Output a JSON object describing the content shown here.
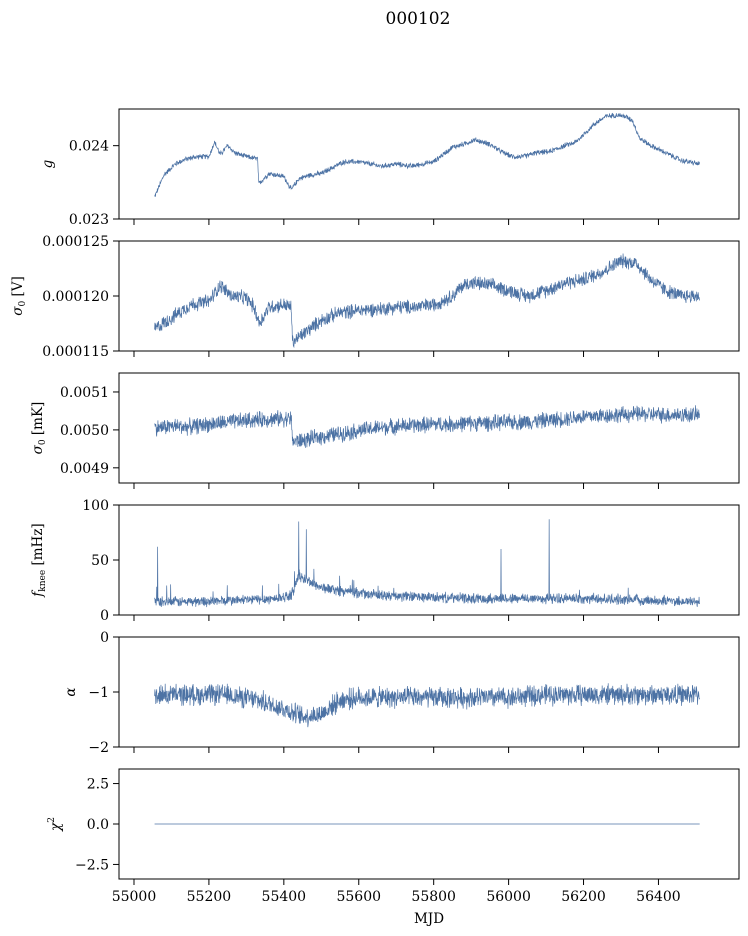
{
  "figure": {
    "title": "000102",
    "xlabel": "MJD",
    "series_color": "#4c72a4"
  },
  "chart_data": [
    {
      "type": "line",
      "ylabel_main": "g",
      "ylabel_sub": "",
      "ylabel_unit": "",
      "xlim": [
        54960,
        56615
      ],
      "ylim": [
        0.023,
        0.0245
      ],
      "xticks": [
        55000,
        55200,
        55400,
        55600,
        55800,
        56000,
        56200,
        56400
      ],
      "xtick_labels": [],
      "yticks": [
        0.023,
        0.024
      ],
      "ytick_labels": [
        "0.023",
        "0.024"
      ],
      "noise": 3e-05,
      "x": [
        55055,
        55080,
        55110,
        55140,
        55170,
        55200,
        55215,
        55230,
        55250,
        55270,
        55300,
        55330,
        55333,
        55360,
        55400,
        55420,
        55440,
        55470,
        55500,
        55530,
        55560,
        55600,
        55630,
        55660,
        55700,
        55740,
        55770,
        55800,
        55830,
        55850,
        55880,
        55910,
        55950,
        55980,
        56010,
        56040,
        56070,
        56110,
        56150,
        56180,
        56200,
        56230,
        56260,
        56290,
        56310,
        56330,
        56350,
        56380,
        56420,
        56460,
        56510
      ],
      "y": [
        0.0233,
        0.0236,
        0.02375,
        0.02382,
        0.02385,
        0.02385,
        0.02405,
        0.02388,
        0.024,
        0.0239,
        0.02385,
        0.02382,
        0.02348,
        0.02362,
        0.02358,
        0.0234,
        0.02355,
        0.0236,
        0.02362,
        0.0237,
        0.02378,
        0.02378,
        0.02375,
        0.02372,
        0.02375,
        0.02372,
        0.02375,
        0.02378,
        0.0239,
        0.02398,
        0.02402,
        0.02408,
        0.02402,
        0.02392,
        0.02385,
        0.02385,
        0.0239,
        0.02392,
        0.024,
        0.02405,
        0.02415,
        0.0243,
        0.0244,
        0.02442,
        0.0244,
        0.02435,
        0.0241,
        0.024,
        0.0239,
        0.0238,
        0.02375
      ]
    },
    {
      "type": "line",
      "ylabel_main": "σ",
      "ylabel_sub": "0",
      "ylabel_unit": " [V]",
      "xlim": [
        54960,
        56615
      ],
      "ylim": [
        0.000115,
        0.000125
      ],
      "xticks": [
        55000,
        55200,
        55400,
        55600,
        55800,
        56000,
        56200,
        56400
      ],
      "xtick_labels": [],
      "yticks": [
        0.000115,
        0.00012,
        0.000125
      ],
      "ytick_labels": [
        "0.000115",
        "0.000120",
        "0.000125"
      ],
      "noise": 5.5e-07,
      "x": [
        55055,
        55100,
        55150,
        55200,
        55230,
        55260,
        55300,
        55320,
        55335,
        55360,
        55400,
        55420,
        55423,
        55450,
        55500,
        55550,
        55600,
        55650,
        55700,
        55750,
        55800,
        55850,
        55880,
        55900,
        55950,
        56000,
        56050,
        56100,
        56150,
        56200,
        56250,
        56300,
        56340,
        56380,
        56420,
        56460,
        56510
      ],
      "y": [
        0.000117,
        0.000118,
        0.0001192,
        0.0001195,
        0.000121,
        0.00012,
        0.0001198,
        0.000119,
        0.0001175,
        0.000119,
        0.0001192,
        0.000119,
        0.0001158,
        0.0001165,
        0.0001178,
        0.0001185,
        0.0001187,
        0.0001188,
        0.000119,
        0.000119,
        0.0001192,
        0.00012,
        0.000121,
        0.0001212,
        0.000121,
        0.0001205,
        0.00012,
        0.0001205,
        0.0001212,
        0.0001215,
        0.0001222,
        0.0001232,
        0.000123,
        0.0001215,
        0.0001205,
        0.00012,
        0.00012
      ]
    },
    {
      "type": "line",
      "ylabel_main": "σ",
      "ylabel_sub": "0",
      "ylabel_unit": " [mK]",
      "xlim": [
        54960,
        56615
      ],
      "ylim": [
        0.00486,
        0.00515
      ],
      "xticks": [
        55000,
        55200,
        55400,
        55600,
        55800,
        56000,
        56200,
        56400
      ],
      "xtick_labels": [],
      "yticks": [
        0.0049,
        0.005,
        0.0051
      ],
      "ytick_labels": [
        "0.0049",
        "0.0050",
        "0.0051"
      ],
      "noise": 1.8e-05,
      "x": [
        55055,
        55100,
        55150,
        55200,
        55250,
        55300,
        55350,
        55400,
        55420,
        55423,
        55450,
        55500,
        55550,
        55600,
        55650,
        55700,
        55750,
        55800,
        55850,
        55900,
        55950,
        56000,
        56050,
        56100,
        56150,
        56200,
        56250,
        56300,
        56350,
        56400,
        56450,
        56510
      ],
      "y": [
        0.005005,
        0.00501,
        0.005008,
        0.005015,
        0.00502,
        0.005025,
        0.005028,
        0.00503,
        0.00503,
        0.00497,
        0.004972,
        0.004982,
        0.00499,
        0.004998,
        0.005005,
        0.00501,
        0.005012,
        0.005015,
        0.005015,
        0.005018,
        0.005018,
        0.00502,
        0.005022,
        0.005025,
        0.00503,
        0.005035,
        0.005038,
        0.00504,
        0.005042,
        0.00504,
        0.00504,
        0.00504
      ]
    },
    {
      "type": "line",
      "ylabel_main": "f",
      "ylabel_sub": "knee",
      "ylabel_unit": " [mHz]",
      "xlim": [
        54960,
        56615
      ],
      "ylim": [
        0,
        100
      ],
      "xticks": [
        55000,
        55200,
        55400,
        55600,
        55800,
        56000,
        56200,
        56400
      ],
      "xtick_labels": [],
      "yticks": [
        0,
        50,
        100
      ],
      "ytick_labels": [
        "0",
        "50",
        "100"
      ],
      "noise": 4,
      "x": [
        55055,
        55150,
        55250,
        55380,
        55420,
        55440,
        55470,
        55500,
        55550,
        55600,
        55650,
        55700,
        55800,
        55900,
        56000,
        56100,
        56200,
        56300,
        56400,
        56510
      ],
      "y": [
        12,
        12,
        13,
        15,
        18,
        35,
        30,
        25,
        22,
        20,
        18,
        17,
        16,
        15,
        15,
        15,
        15,
        14,
        13,
        12
      ],
      "spikes": [
        [
          55063,
          62
        ],
        [
          55440,
          85
        ],
        [
          55460,
          78
        ],
        [
          55980,
          60
        ],
        [
          56108,
          87
        ]
      ]
    },
    {
      "type": "line",
      "ylabel_main": "α",
      "ylabel_sub": "",
      "ylabel_unit": "",
      "xlim": [
        54960,
        56615
      ],
      "ylim": [
        -2,
        0
      ],
      "xticks": [
        55000,
        55200,
        55400,
        55600,
        55800,
        56000,
        56200,
        56400
      ],
      "xtick_labels": [],
      "yticks": [
        -2,
        -1,
        0
      ],
      "ytick_labels": [
        "−2",
        "−1",
        "0"
      ],
      "noise": 0.16,
      "x": [
        55055,
        55150,
        55250,
        55330,
        55400,
        55450,
        55500,
        55550,
        55600,
        55700,
        55800,
        55900,
        56000,
        56100,
        56200,
        56300,
        56400,
        56510
      ],
      "y": [
        -1.05,
        -1.05,
        -1.05,
        -1.15,
        -1.3,
        -1.45,
        -1.4,
        -1.15,
        -1.1,
        -1.1,
        -1.1,
        -1.1,
        -1.1,
        -1.05,
        -1.05,
        -1.05,
        -1.05,
        -1.05
      ]
    },
    {
      "type": "line",
      "ylabel_main": "χ",
      "ylabel_sub": "",
      "ylabel_sup": "2",
      "ylabel_unit": "",
      "xlim": [
        54960,
        56615
      ],
      "ylim": [
        -3.4,
        3.4
      ],
      "xticks": [
        55000,
        55200,
        55400,
        55600,
        55800,
        56000,
        56200,
        56400
      ],
      "xtick_labels": [
        "55000",
        "55200",
        "55400",
        "55600",
        "55800",
        "56000",
        "56200",
        "56400"
      ],
      "yticks": [
        -2.5,
        0,
        2.5
      ],
      "ytick_labels": [
        "−2.5",
        "0.0",
        "2.5"
      ],
      "noise": 0,
      "x": [
        55055,
        56510
      ],
      "y": [
        0,
        0
      ]
    }
  ]
}
